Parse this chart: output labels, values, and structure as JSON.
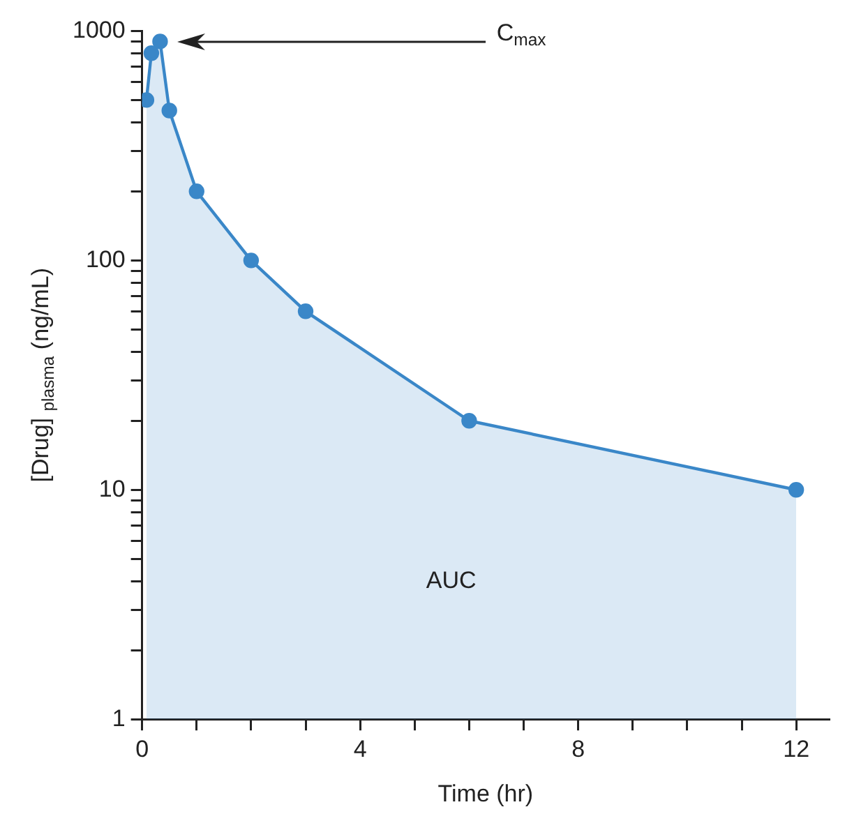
{
  "chart_data": {
    "type": "area",
    "xlabel": "Time (hr)",
    "ylabel": "[Drug] $_{plasma}$ (ng/mL)",
    "x": [
      0.08,
      0.17,
      0.33,
      0.5,
      1,
      2,
      3,
      6,
      12
    ],
    "series": [
      {
        "color": "#3a87c8",
        "values": [
          500,
          800,
          900,
          450,
          200,
          100,
          60,
          20,
          10
        ]
      }
    ],
    "xlim": [
      0,
      12.6
    ],
    "xticks": [
      0,
      {
        "value": 1,
        "label": null
      },
      {
        "value": 2,
        "label": null
      },
      {
        "value": 3,
        "label": null
      },
      4,
      {
        "value": 5,
        "label": null
      },
      {
        "value": 6,
        "label": null
      },
      {
        "value": 7,
        "label": null
      },
      8,
      {
        "value": 9,
        "label": null
      },
      {
        "value": 10,
        "label": null
      },
      {
        "value": 11,
        "label": null
      },
      12
    ],
    "ylim": [
      1,
      1000
    ],
    "yticks": [
      1,
      {
        "value": 2,
        "label": null
      },
      {
        "value": 3,
        "label": null
      },
      {
        "value": 4,
        "label": null
      },
      {
        "value": 5,
        "label": null
      },
      {
        "value": 6,
        "label": null
      },
      {
        "value": 7,
        "label": null
      },
      {
        "value": 8,
        "label": null
      },
      {
        "value": 9,
        "label": null
      },
      10,
      {
        "value": 20,
        "label": null
      },
      {
        "value": 30,
        "label": null
      },
      {
        "value": 40,
        "label": null
      },
      {
        "value": 50,
        "label": null
      },
      {
        "value": 60,
        "label": null
      },
      {
        "value": 70,
        "label": null
      },
      {
        "value": 80,
        "label": null
      },
      {
        "value": 90,
        "label": null
      },
      100,
      {
        "value": 200,
        "label": null
      },
      {
        "value": 300,
        "label": null
      },
      {
        "value": 400,
        "label": null
      },
      {
        "value": 500,
        "label": null
      },
      {
        "value": 600,
        "label": null
      },
      {
        "value": 700,
        "label": null
      },
      {
        "value": 800,
        "label": null
      },
      {
        "value": 900,
        "label": null
      },
      1000
    ],
    "log": "y",
    "marker": "circle",
    "grid": false,
    "legend": false,
    "annotations": [
      "C$_{max}$",
      "AUC"
    ]
  }
}
